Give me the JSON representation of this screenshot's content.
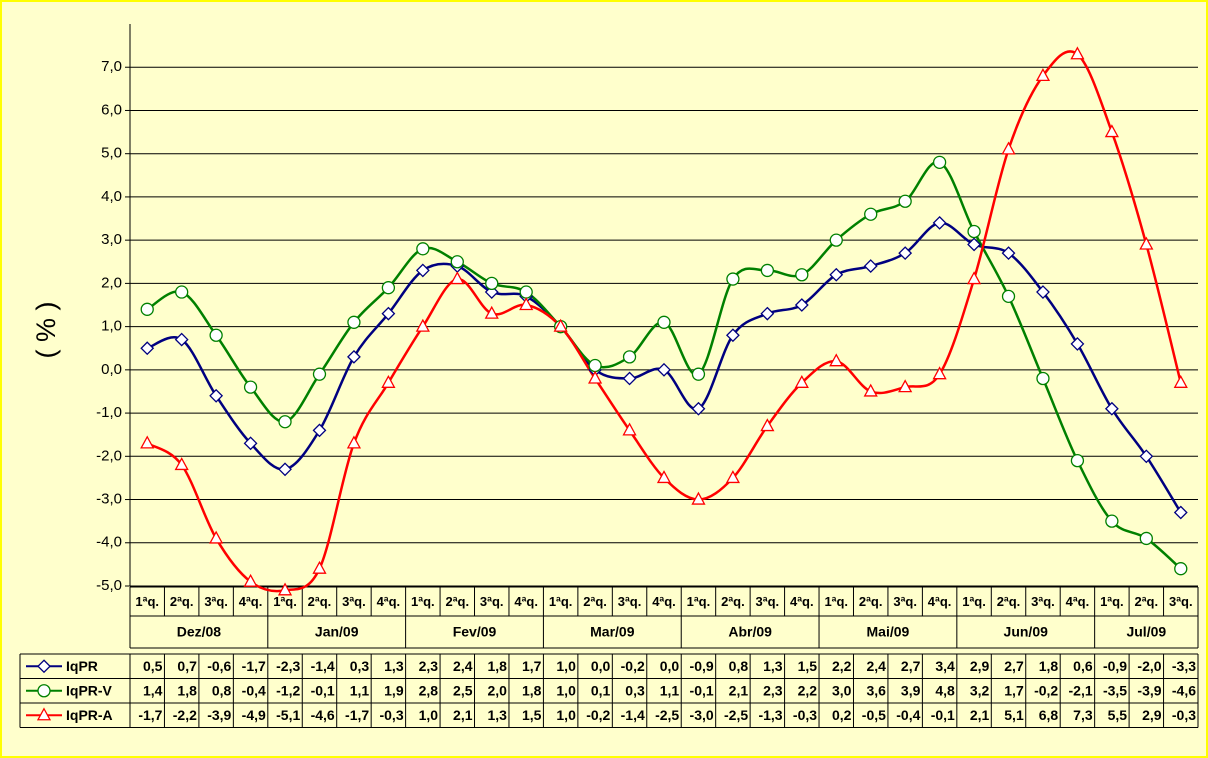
{
  "chart_data": {
    "type": "line",
    "y_label": "( % )",
    "ylim": [
      -5,
      8
    ],
    "yticks": [
      {
        "value": -5,
        "label": "-5,0"
      },
      {
        "value": -4,
        "label": "-4,0"
      },
      {
        "value": -3,
        "label": "-3,0"
      },
      {
        "value": -2,
        "label": "-2,0"
      },
      {
        "value": -1,
        "label": "-1,0"
      },
      {
        "value": 0,
        "label": "0,0"
      },
      {
        "value": 1,
        "label": "1,0"
      },
      {
        "value": 2,
        "label": "2,0"
      },
      {
        "value": 3,
        "label": "3,0"
      },
      {
        "value": 4,
        "label": "4,0"
      },
      {
        "value": 5,
        "label": "5,0"
      },
      {
        "value": 6,
        "label": "6,0"
      },
      {
        "value": 7,
        "label": "7,0"
      }
    ],
    "grid": true,
    "category_groups": [
      {
        "label": "Dez/08",
        "categories": [
          "1ªq.",
          "2ªq.",
          "3ªq.",
          "4ªq."
        ]
      },
      {
        "label": "Jan/09",
        "categories": [
          "1ªq.",
          "2ªq.",
          "3ªq.",
          "4ªq."
        ]
      },
      {
        "label": "Fev/09",
        "categories": [
          "1ªq.",
          "2ªq.",
          "3ªq.",
          "4ªq."
        ]
      },
      {
        "label": "Mar/09",
        "categories": [
          "1ªq.",
          "2ªq.",
          "3ªq.",
          "4ªq."
        ]
      },
      {
        "label": "Abr/09",
        "categories": [
          "1ªq.",
          "2ªq.",
          "3ªq.",
          "4ªq."
        ]
      },
      {
        "label": "Mai/09",
        "categories": [
          "1ªq.",
          "2ªq.",
          "3ªq.",
          "4ªq."
        ]
      },
      {
        "label": "Jun/09",
        "categories": [
          "1ªq.",
          "2ªq.",
          "3ªq.",
          "4ªq."
        ]
      },
      {
        "label": "Jul/09",
        "categories": [
          "1ªq.",
          "2ªq.",
          "3ªq."
        ]
      }
    ],
    "series": [
      {
        "name": "IqPR",
        "color": "#000080",
        "marker": "diamond",
        "values": [
          0.5,
          0.7,
          -0.6,
          -1.7,
          -2.3,
          -1.4,
          0.3,
          1.3,
          2.3,
          2.4,
          1.8,
          1.7,
          1.0,
          0.0,
          -0.2,
          0.0,
          -0.9,
          0.8,
          1.3,
          1.5,
          2.2,
          2.4,
          2.7,
          3.4,
          2.9,
          2.7,
          1.8,
          0.6,
          -0.9,
          -2.0,
          -3.3
        ],
        "value_labels": [
          "0,5",
          "0,7",
          "-0,6",
          "-1,7",
          "-2,3",
          "-1,4",
          "0,3",
          "1,3",
          "2,3",
          "2,4",
          "1,8",
          "1,7",
          "1,0",
          "0,0",
          "-0,2",
          "0,0",
          "-0,9",
          "0,8",
          "1,3",
          "1,5",
          "2,2",
          "2,4",
          "2,7",
          "3,4",
          "2,9",
          "2,7",
          "1,8",
          "0,6",
          "-0,9",
          "-2,0",
          "-3,3"
        ]
      },
      {
        "name": "IqPR-V",
        "color": "#008000",
        "marker": "circle",
        "values": [
          1.4,
          1.8,
          0.8,
          -0.4,
          -1.2,
          -0.1,
          1.1,
          1.9,
          2.8,
          2.5,
          2.0,
          1.8,
          1.0,
          0.1,
          0.3,
          1.1,
          -0.1,
          2.1,
          2.3,
          2.2,
          3.0,
          3.6,
          3.9,
          4.8,
          3.2,
          1.7,
          -0.2,
          -2.1,
          -3.5,
          -3.9,
          -4.6
        ],
        "value_labels": [
          "1,4",
          "1,8",
          "0,8",
          "-0,4",
          "-1,2",
          "-0,1",
          "1,1",
          "1,9",
          "2,8",
          "2,5",
          "2,0",
          "1,8",
          "1,0",
          "0,1",
          "0,3",
          "1,1",
          "-0,1",
          "2,1",
          "2,3",
          "2,2",
          "3,0",
          "3,6",
          "3,9",
          "4,8",
          "3,2",
          "1,7",
          "-0,2",
          "-2,1",
          "-3,5",
          "-3,9",
          "-4,6"
        ]
      },
      {
        "name": "IqPR-A",
        "color": "#ff0000",
        "marker": "triangle",
        "values": [
          -1.7,
          -2.2,
          -3.9,
          -4.9,
          -5.1,
          -4.6,
          -1.7,
          -0.3,
          1.0,
          2.1,
          1.3,
          1.5,
          1.0,
          -0.2,
          -1.4,
          -2.5,
          -3.0,
          -2.5,
          -1.3,
          -0.3,
          0.2,
          -0.5,
          -0.4,
          -0.1,
          2.1,
          5.1,
          6.8,
          7.3,
          5.5,
          2.9,
          -0.3
        ],
        "value_labels": [
          "-1,7",
          "-2,2",
          "-3,9",
          "-4,9",
          "-5,1",
          "-4,6",
          "-1,7",
          "-0,3",
          "1,0",
          "2,1",
          "1,3",
          "1,5",
          "1,0",
          "-0,2",
          "-1,4",
          "-2,5",
          "-3,0",
          "-2,5",
          "-1,3",
          "-0,3",
          "0,2",
          "-0,5",
          "-0,4",
          "-0,1",
          "2,1",
          "5,1",
          "6,8",
          "7,3",
          "5,5",
          "2,9",
          "-0,3"
        ]
      }
    ]
  }
}
